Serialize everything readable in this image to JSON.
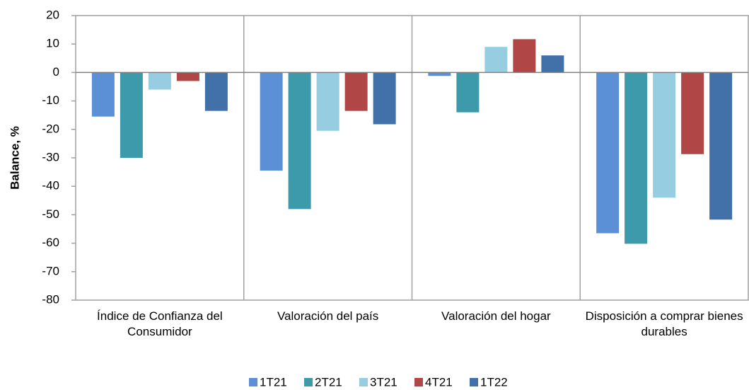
{
  "chart_data": {
    "type": "bar",
    "y_label": "Balance, %",
    "categories": [
      "Índice de Confianza del Consumidor",
      "Valoración del país",
      "Valoración del hogar",
      "Disposición a comprar bienes durables"
    ],
    "series": [
      {
        "name": "1T21",
        "color": "#5b8fd6",
        "values": [
          -15.5,
          -34.5,
          -1.2,
          -56.5
        ]
      },
      {
        "name": "2T21",
        "color": "#3d9aab",
        "values": [
          -30,
          -48,
          -14,
          -60.2
        ]
      },
      {
        "name": "3T21",
        "color": "#97cde0",
        "values": [
          -6,
          -20.5,
          9,
          -44
        ]
      },
      {
        "name": "4T21",
        "color": "#b04646",
        "values": [
          -3,
          -13.5,
          11.7,
          -28.7
        ]
      },
      {
        "name": "1T22",
        "color": "#4270a8",
        "values": [
          -13.5,
          -18.2,
          6,
          -51.7
        ]
      }
    ],
    "ylim": [
      -80,
      20
    ],
    "yticks": [
      -80,
      -70,
      -60,
      -50,
      -40,
      -30,
      -20,
      -10,
      0,
      10,
      20
    ]
  }
}
